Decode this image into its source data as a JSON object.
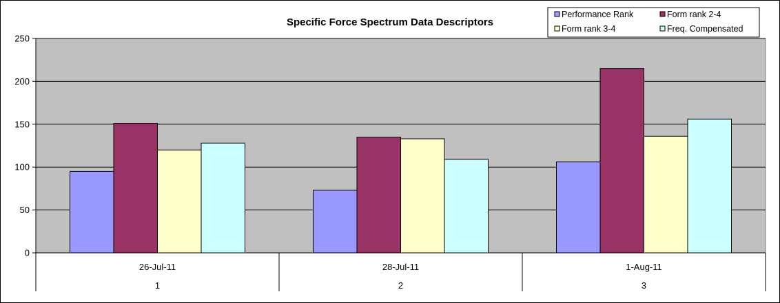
{
  "chart_data": {
    "type": "bar",
    "title": "Specific Force Spectrum Data Descriptors",
    "xlabel": "",
    "ylabel": "",
    "ylim": [
      0,
      250
    ],
    "yticks": [
      0,
      50,
      100,
      150,
      200,
      250
    ],
    "grid": true,
    "legend_position": "top-right",
    "categories": [
      "26-Jul-11",
      "28-Jul-11",
      "1-Aug-11"
    ],
    "category_index_labels": [
      "1",
      "2",
      "3"
    ],
    "series": [
      {
        "name": "Performance Rank",
        "color": "#9999FF",
        "values": [
          95,
          73,
          106
        ]
      },
      {
        "name": "Form rank 2-4",
        "color": "#993366",
        "values": [
          151,
          135,
          215
        ]
      },
      {
        "name": "Form rank 3-4",
        "color": "#FFFFCC",
        "values": [
          120,
          133,
          136
        ]
      },
      {
        "name": "Freq. Compensated",
        "color": "#CCFFFF",
        "values": [
          128,
          109,
          156
        ]
      }
    ],
    "plot_background": "#C0C0C0"
  }
}
